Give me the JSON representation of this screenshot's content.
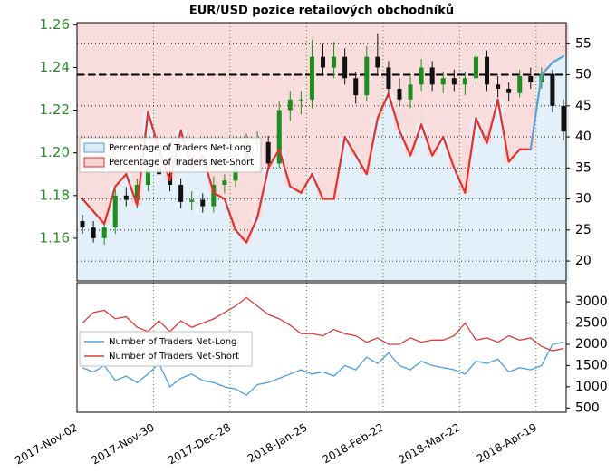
{
  "chart_data": [
    {
      "type": "candlestick",
      "title": "EUR/USD pozice retailových obchodníků",
      "x": [
        "2017-Nov-02",
        "2017-Nov-06",
        "2017-Nov-10",
        "2017-Nov-14",
        "2017-Nov-18",
        "2017-Nov-22",
        "2017-Nov-26",
        "2017-Nov-30",
        "2017-Dec-04",
        "2017-Dec-08",
        "2017-Dec-12",
        "2017-Dec-16",
        "2017-Dec-20",
        "2017-Dec-24",
        "2017-Dec-28",
        "2018-Jan-01",
        "2018-Jan-05",
        "2018-Jan-09",
        "2018-Jan-13",
        "2018-Jan-17",
        "2018-Jan-21",
        "2018-Jan-25",
        "2018-Jan-29",
        "2018-Feb-02",
        "2018-Feb-06",
        "2018-Feb-10",
        "2018-Feb-14",
        "2018-Feb-18",
        "2018-Feb-22",
        "2018-Feb-26",
        "2018-Mar-02",
        "2018-Mar-06",
        "2018-Mar-10",
        "2018-Mar-14",
        "2018-Mar-18",
        "2018-Mar-22",
        "2018-Mar-26",
        "2018-Mar-30",
        "2018-Apr-03",
        "2018-Apr-07",
        "2018-Apr-11",
        "2018-Apr-15",
        "2018-Apr-19",
        "2018-Apr-23",
        "2018-Apr-27"
      ],
      "open": [
        1.168,
        1.165,
        1.16,
        1.165,
        1.18,
        1.178,
        1.185,
        1.193,
        1.19,
        1.185,
        1.177,
        1.178,
        1.175,
        1.185,
        1.187,
        1.195,
        1.205,
        1.205,
        1.195,
        1.22,
        1.225,
        1.225,
        1.245,
        1.24,
        1.245,
        1.235,
        1.227,
        1.245,
        1.24,
        1.23,
        1.225,
        1.232,
        1.24,
        1.232,
        1.235,
        1.232,
        1.235,
        1.245,
        1.232,
        1.23,
        1.228,
        1.236,
        1.233,
        1.237,
        1.222
      ],
      "high": [
        1.171,
        1.168,
        1.167,
        1.183,
        1.184,
        1.188,
        1.197,
        1.2,
        1.193,
        1.188,
        1.182,
        1.181,
        1.189,
        1.19,
        1.199,
        1.209,
        1.21,
        1.208,
        1.224,
        1.229,
        1.229,
        1.253,
        1.251,
        1.252,
        1.249,
        1.238,
        1.25,
        1.256,
        1.243,
        1.235,
        1.236,
        1.244,
        1.243,
        1.238,
        1.239,
        1.238,
        1.248,
        1.248,
        1.236,
        1.233,
        1.239,
        1.24,
        1.24,
        1.239,
        1.225
      ],
      "low": [
        1.162,
        1.158,
        1.157,
        1.162,
        1.175,
        1.174,
        1.182,
        1.186,
        1.182,
        1.174,
        1.173,
        1.172,
        1.172,
        1.181,
        1.184,
        1.192,
        1.2,
        1.192,
        1.193,
        1.215,
        1.218,
        1.221,
        1.236,
        1.235,
        1.232,
        1.223,
        1.224,
        1.236,
        1.226,
        1.222,
        1.221,
        1.229,
        1.229,
        1.228,
        1.229,
        1.227,
        1.232,
        1.229,
        1.226,
        1.224,
        1.226,
        1.23,
        1.23,
        1.219,
        1.206
      ],
      "close": [
        1.165,
        1.16,
        1.165,
        1.18,
        1.178,
        1.185,
        1.193,
        1.19,
        1.185,
        1.177,
        1.178,
        1.175,
        1.185,
        1.187,
        1.195,
        1.205,
        1.205,
        1.195,
        1.22,
        1.225,
        1.225,
        1.245,
        1.24,
        1.245,
        1.235,
        1.227,
        1.245,
        1.24,
        1.23,
        1.225,
        1.232,
        1.24,
        1.232,
        1.235,
        1.232,
        1.235,
        1.245,
        1.232,
        1.23,
        1.228,
        1.236,
        1.233,
        1.237,
        1.222,
        1.21
      ],
      "up_color": "#1e8c1e",
      "down_color": "#111111",
      "ylim": [
        1.14,
        1.261
      ],
      "yticks": [
        1.16,
        1.18,
        {
          "value": 1.2,
          "label": "1.20"
        },
        1.22,
        1.24,
        1.26
      ],
      "y2lim": [
        16.8,
        58.4
      ],
      "y2ticks": [
        20,
        25,
        30,
        35,
        40,
        45,
        50,
        55
      ],
      "reference_line": 50,
      "series": [
        {
          "name": "Percentage of Traders Net-Long",
          "color": "#dcebf7",
          "line_color": "#5aa0d8",
          "axis": "y2",
          "values": [
            30,
            28,
            26,
            32,
            34,
            29,
            44,
            38,
            33,
            41,
            35,
            37,
            31,
            30,
            25,
            23,
            27,
            35,
            38,
            32,
            31,
            34,
            30,
            30,
            40,
            37,
            34,
            43,
            47,
            41,
            37,
            42,
            37,
            40,
            35,
            31,
            43,
            39,
            46,
            36,
            38,
            38,
            50,
            52,
            53
          ]
        },
        {
          "name": "Percentage of Traders Net-Short",
          "color": "#f8d3d3",
          "line_color": "#e0322f",
          "axis": "y2"
        }
      ]
    },
    {
      "type": "line",
      "x": [
        "2017-Nov-02",
        "2017-Nov-06",
        "2017-Nov-10",
        "2017-Nov-14",
        "2017-Nov-18",
        "2017-Nov-22",
        "2017-Nov-26",
        "2017-Nov-30",
        "2017-Dec-04",
        "2017-Dec-08",
        "2017-Dec-12",
        "2017-Dec-16",
        "2017-Dec-20",
        "2017-Dec-24",
        "2017-Dec-28",
        "2018-Jan-01",
        "2018-Jan-05",
        "2018-Jan-09",
        "2018-Jan-13",
        "2018-Jan-17",
        "2018-Jan-21",
        "2018-Jan-25",
        "2018-Jan-29",
        "2018-Feb-02",
        "2018-Feb-06",
        "2018-Feb-10",
        "2018-Feb-14",
        "2018-Feb-18",
        "2018-Feb-22",
        "2018-Feb-26",
        "2018-Mar-02",
        "2018-Mar-06",
        "2018-Mar-10",
        "2018-Mar-14",
        "2018-Mar-18",
        "2018-Mar-22",
        "2018-Mar-26",
        "2018-Mar-30",
        "2018-Apr-03",
        "2018-Apr-07",
        "2018-Apr-11",
        "2018-Apr-15",
        "2018-Apr-19",
        "2018-Apr-23",
        "2018-Apr-27"
      ],
      "xlim": [
        "2017-Nov-02",
        "2018-Apr-30"
      ],
      "xticks": [
        "2017-Nov-02",
        "2017-Nov-30",
        "2017-Dec-28",
        "2018-Jan-25",
        "2018-Feb-22",
        "2018-Mar-22",
        "2018-Apr-19"
      ],
      "ylim": [
        400,
        3450
      ],
      "yticks": [
        500,
        1000,
        1500,
        2000,
        2500,
        3000
      ],
      "series": [
        {
          "name": "Number of Traders Net-Long",
          "color": "#4a9ee0",
          "values": [
            1450,
            1350,
            1500,
            1150,
            1250,
            1100,
            1300,
            1550,
            1000,
            1200,
            1300,
            1150,
            1100,
            1000,
            950,
            800,
            1050,
            1100,
            1200,
            1300,
            1400,
            1300,
            1350,
            1250,
            1500,
            1400,
            1700,
            1550,
            1800,
            1500,
            1400,
            1600,
            1500,
            1450,
            1400,
            1300,
            1600,
            1550,
            1650,
            1350,
            1450,
            1400,
            1500,
            2000,
            2050
          ]
        },
        {
          "name": "Number of Traders Net-Short",
          "color": "#e03a3a",
          "values": [
            2500,
            2750,
            2800,
            2600,
            2650,
            2400,
            2300,
            2550,
            2300,
            2550,
            2400,
            2500,
            2600,
            2750,
            2900,
            3100,
            2900,
            2700,
            2600,
            2450,
            2250,
            2250,
            2200,
            2350,
            2250,
            2200,
            2050,
            2150,
            2000,
            2000,
            2150,
            2050,
            2100,
            2100,
            2200,
            2500,
            2100,
            2150,
            2050,
            2200,
            2100,
            2150,
            1950,
            1850,
            1900
          ]
        }
      ]
    }
  ]
}
